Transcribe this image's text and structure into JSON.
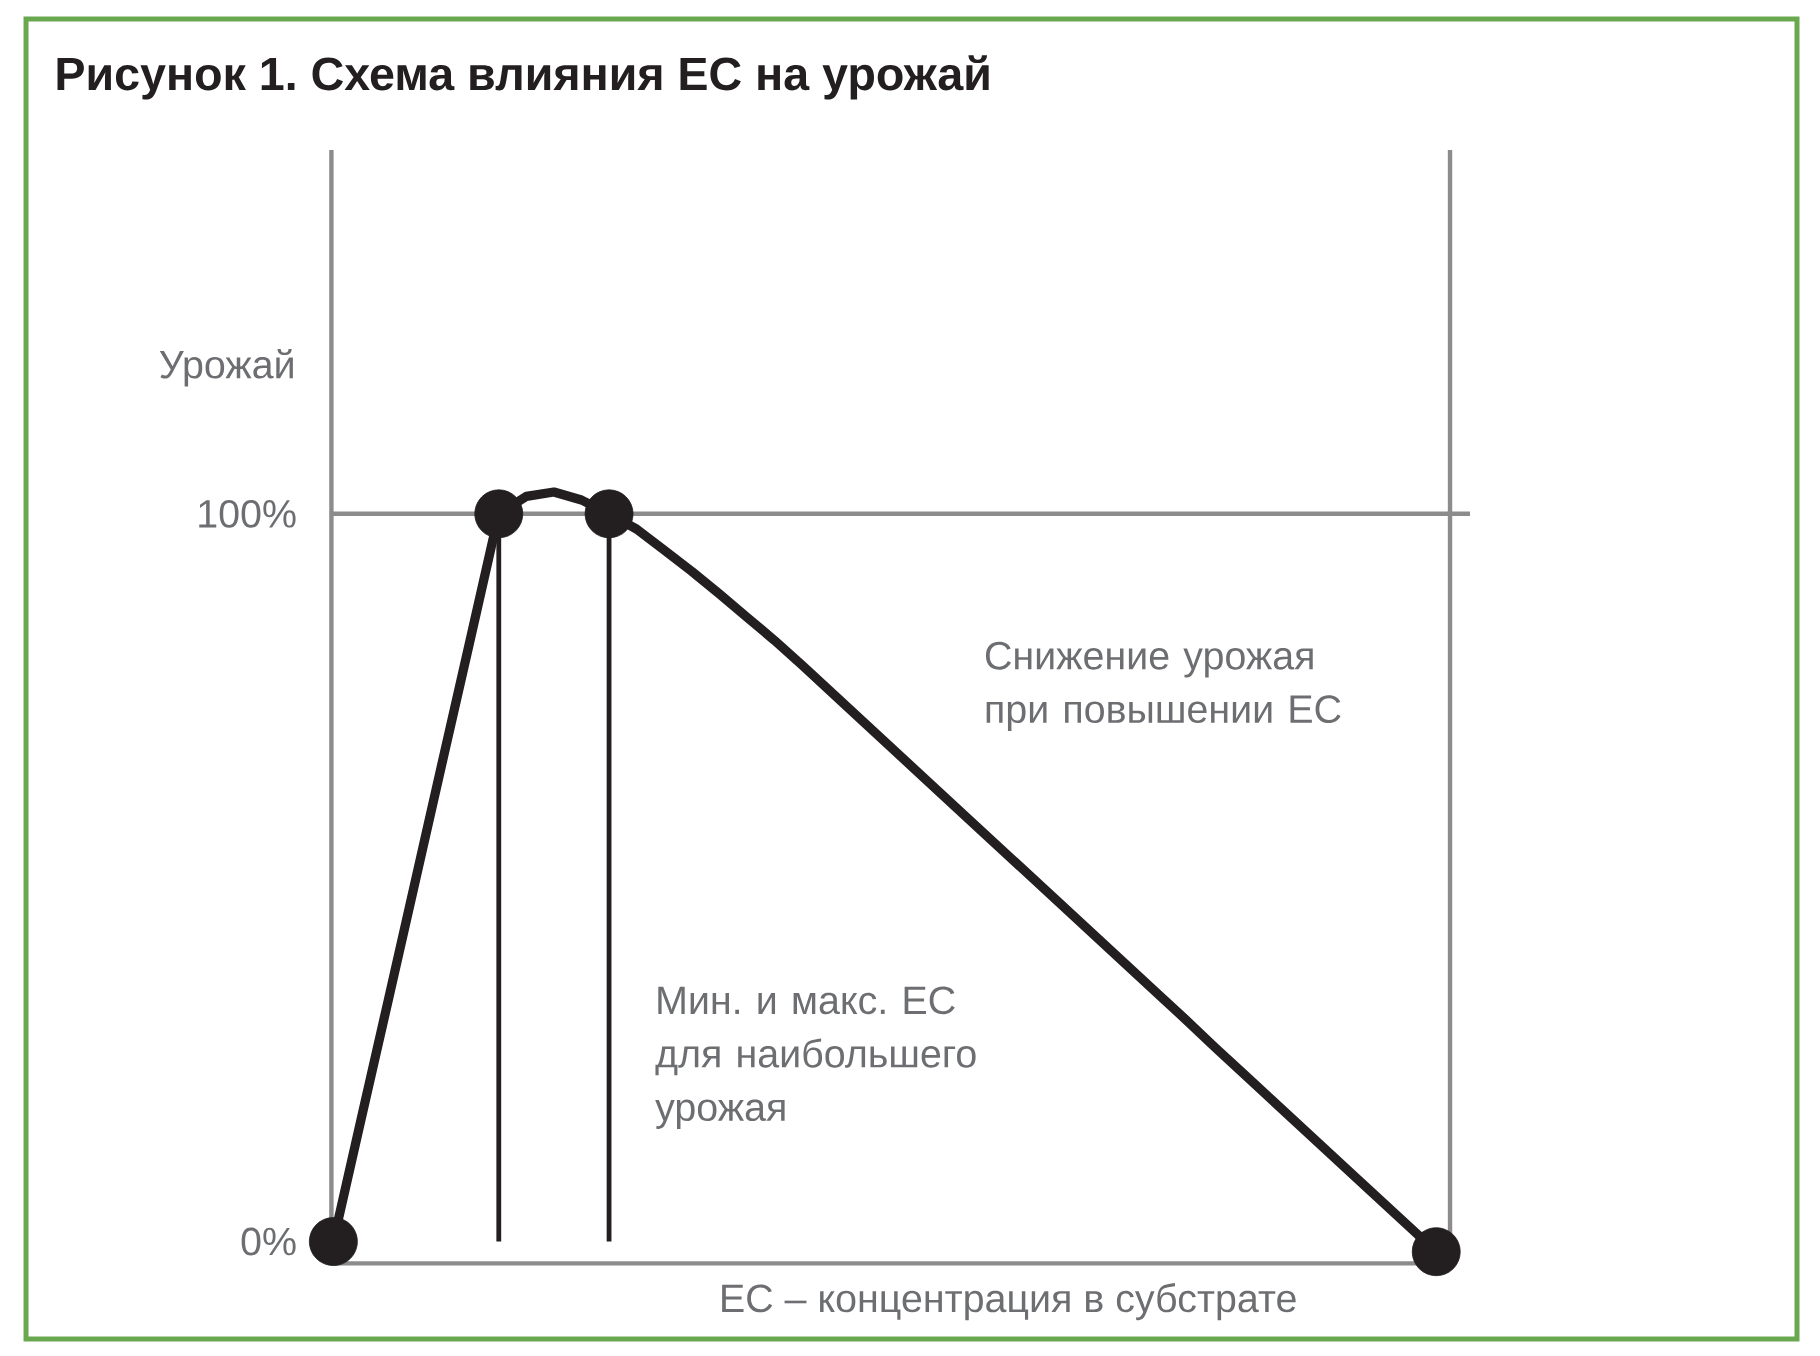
{
  "chart_data": {
    "type": "line",
    "title": "Рисунок 1. Схема влияния EC на урожай",
    "xlabel": "EC – концентрация в субстрате",
    "ylabel": "Урожай",
    "categories": [
      null,
      null,
      null,
      null,
      null,
      null,
      null,
      null,
      null,
      null,
      null,
      null,
      null,
      null,
      null,
      null,
      null,
      null,
      null,
      null,
      null,
      null,
      null,
      null,
      null,
      null,
      null,
      null,
      null,
      null,
      null,
      null,
      null,
      null,
      null,
      null,
      null,
      null,
      null,
      null,
      null
    ],
    "series": [
      {
        "color": "#231f20",
        "values": [
          0,
          16.7,
          33.3,
          50,
          66.7,
          83.3,
          100,
          102.4,
          103.0,
          101.9,
          100,
          97.9,
          95.0,
          92.1,
          89.0,
          85.8,
          82.6,
          79.2,
          75.7,
          72.2,
          68.7,
          65.2,
          61.7,
          58.2,
          54.7,
          51.2,
          47.7,
          44.2,
          40.7,
          37.2,
          33.7,
          30.2,
          26.6,
          23.1,
          19.6,
          16.1,
          12.6,
          9.1,
          5.6,
          2.1,
          -1.4
        ]
      },
      {
        "type": "scatter",
        "color": "#231f20",
        "marker": "circle",
        "values": [
          0,
          null,
          null,
          null,
          null,
          null,
          null,
          null,
          null,
          null,
          null,
          null,
          null,
          null,
          null,
          null,
          null,
          null,
          null,
          null,
          null,
          null,
          null,
          null,
          null,
          null,
          null,
          null,
          null,
          null,
          null,
          null,
          null,
          null,
          null,
          null,
          null,
          null,
          null,
          null,
          -1.4
        ]
      },
      {
        "type": "lollipop",
        "color": "#231f20",
        "marker": "circle",
        "values": [
          null,
          null,
          null,
          null,
          null,
          null,
          100,
          null,
          null,
          null,
          100,
          null,
          null,
          null,
          null,
          null,
          null,
          null,
          null,
          null,
          null,
          null,
          null,
          null,
          null,
          null,
          null,
          null,
          null,
          null,
          null,
          null,
          null,
          null,
          null,
          null,
          null,
          null,
          null,
          null,
          null
        ]
      }
    ],
    "ylim": [
      -3,
      150
    ],
    "yticks": [
      {
        "value": 0,
        "label": "0%"
      },
      {
        "value": 100,
        "label": "100%"
      }
    ],
    "tick_labels": "y",
    "ref_lines": [
      {
        "axis": "y",
        "value": 100,
        "color": "#8c8c8c"
      }
    ],
    "annotations": [
      "Снижение урожая при повышении EC",
      "Мин. и макс. EC для наибольшего урожая"
    ]
  }
}
